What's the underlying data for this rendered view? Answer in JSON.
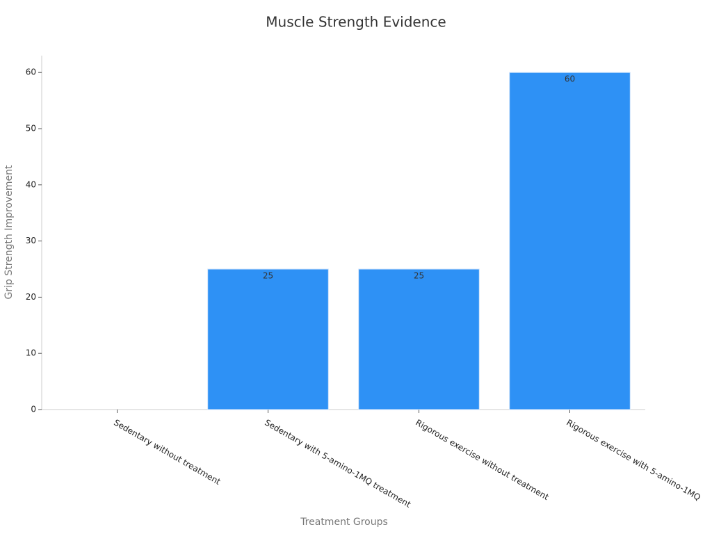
{
  "chart_data": {
    "type": "bar",
    "title": "Muscle Strength Evidence",
    "x_label": "Treatment Groups",
    "y_label": "Grip Strength Improvement",
    "categories": [
      "Sedentary without treatment",
      "Sedentary with 5-amino-1MQ treatment",
      "Rigorous exercise without treatment",
      "Rigorous exercise with 5-amino-1MQ"
    ],
    "values": [
      0,
      25,
      25,
      60
    ],
    "color": "#2e91f5",
    "ylim": [
      0,
      63
    ],
    "yticks": [
      0,
      10,
      20,
      30,
      40,
      50,
      60
    ],
    "grid": false
  }
}
